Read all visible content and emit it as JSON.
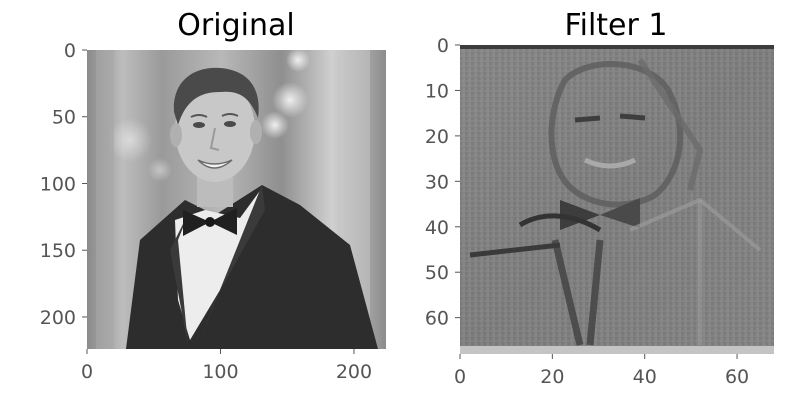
{
  "chart_data": [
    {
      "type": "image",
      "title": "Original",
      "xlabel": "",
      "ylabel": "",
      "colormap": "gray",
      "grid": false,
      "xlim": [
        0,
        224
      ],
      "ylim": [
        224,
        0
      ],
      "x_ticks": [
        0,
        100,
        200
      ],
      "y_ticks": [
        0,
        50,
        100,
        150,
        200
      ]
    },
    {
      "type": "image",
      "title": "Filter 1",
      "xlabel": "",
      "ylabel": "",
      "colormap": "gray",
      "grid": false,
      "xlim": [
        0,
        68
      ],
      "ylim": [
        68,
        0
      ],
      "x_ticks": [
        0,
        20,
        40,
        60
      ],
      "y_ticks": [
        0,
        10,
        20,
        30,
        40,
        50,
        60
      ]
    }
  ]
}
